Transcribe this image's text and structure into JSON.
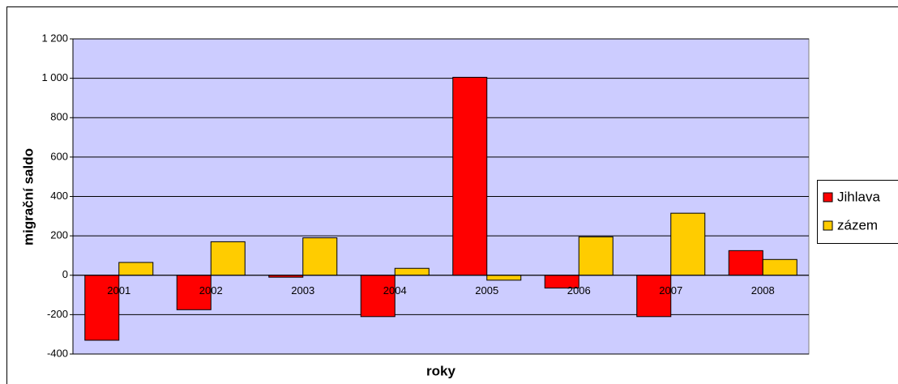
{
  "chart_data": {
    "type": "bar",
    "x_label": "roky",
    "y_label": "migrační saldo",
    "categories": [
      "2001",
      "2002",
      "2003",
      "2004",
      "2005",
      "2006",
      "2007",
      "2008"
    ],
    "series": [
      {
        "name": "Jihlava",
        "color": "#ff0000",
        "values": [
          -330,
          -175,
          -10,
          -210,
          1005,
          -65,
          -210,
          125
        ]
      },
      {
        "name": "zázem",
        "color": "#ffcc00",
        "values": [
          65,
          170,
          190,
          35,
          -25,
          195,
          315,
          80
        ]
      }
    ],
    "ylim": [
      -400,
      1200
    ],
    "yticks": [
      -400,
      -200,
      0,
      200,
      400,
      600,
      800,
      {
        "value": 1000,
        "label": "1 000"
      },
      {
        "value": 1200,
        "label": "1 200"
      }
    ],
    "grid": true
  }
}
